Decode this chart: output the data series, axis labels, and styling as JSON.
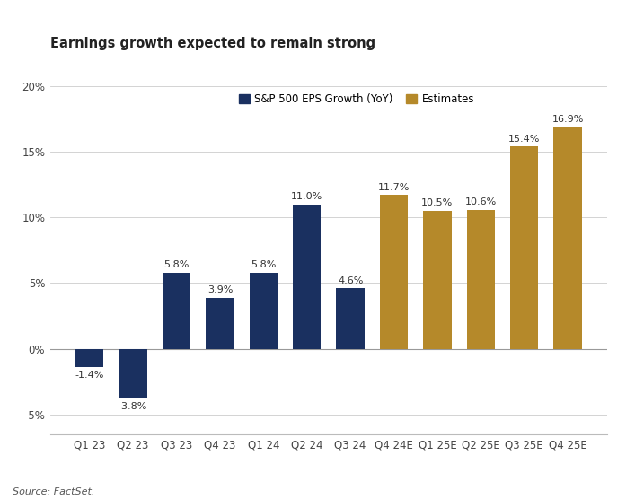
{
  "title": "Earnings growth expected to remain strong",
  "categories": [
    "Q1 23",
    "Q2 23",
    "Q3 23",
    "Q4 23",
    "Q1 24",
    "Q2 24",
    "Q3 24",
    "Q4 24E",
    "Q1 25E",
    "Q2 25E",
    "Q3 25E",
    "Q4 25E"
  ],
  "values": [
    -1.4,
    -3.8,
    5.8,
    3.9,
    5.8,
    11.0,
    4.6,
    11.7,
    10.5,
    10.6,
    15.4,
    16.9
  ],
  "colors": [
    "#1a3060",
    "#1a3060",
    "#1a3060",
    "#1a3060",
    "#1a3060",
    "#1a3060",
    "#1a3060",
    "#b5892a",
    "#b5892a",
    "#b5892a",
    "#b5892a",
    "#b5892a"
  ],
  "legend_actual_label": "S&P 500 EPS Growth (YoY)",
  "legend_estimate_label": "Estimates",
  "legend_actual_color": "#1a3060",
  "legend_estimate_color": "#b5892a",
  "ylim": [
    -6.5,
    22
  ],
  "yticks": [
    -5,
    0,
    5,
    10,
    15,
    20
  ],
  "ytick_labels": [
    "-5%",
    "0%",
    "5%",
    "10%",
    "15%",
    "20%"
  ],
  "source_text": "Source: FactSet.",
  "title_fontsize": 10.5,
  "label_fontsize": 8,
  "tick_fontsize": 8.5,
  "background_color": "#ffffff"
}
